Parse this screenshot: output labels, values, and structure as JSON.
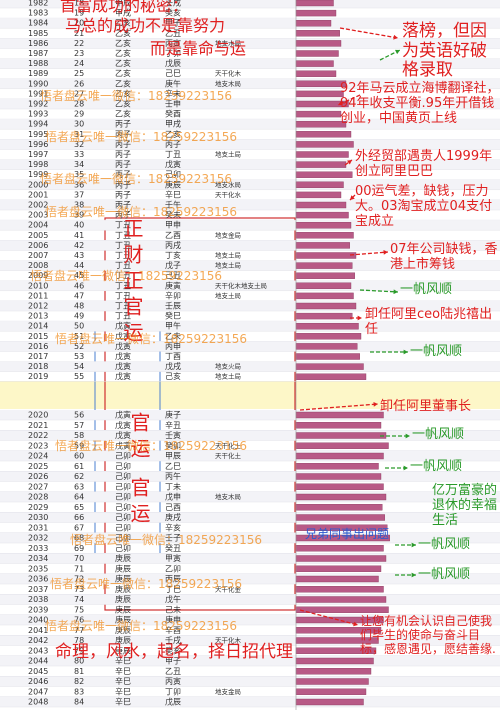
{
  "years": [
    1982,
    1983,
    1984,
    1985,
    1986,
    1987,
    1988,
    1989,
    1990,
    1991,
    1992,
    1993,
    1994,
    1995,
    1996,
    1997,
    1998,
    1999,
    2000,
    2001,
    2002,
    2003,
    2004,
    2005,
    2006,
    2007,
    2008,
    2009,
    2010,
    2011,
    2012,
    2013,
    2014,
    2015,
    2016,
    2017,
    2018,
    2019,
    2020,
    2021,
    2022,
    2023,
    2024,
    2025,
    2026,
    2027,
    2028,
    2029,
    2030,
    2031,
    2032,
    2033,
    2034,
    2035,
    2036,
    2037,
    2038,
    2039,
    2040,
    2041,
    2042,
    2043,
    2044,
    2045,
    2046,
    2047,
    2048
  ],
  "ages": [
    18,
    19,
    20,
    21,
    22,
    23,
    24,
    25,
    26,
    27,
    28,
    29,
    30,
    31,
    32,
    33,
    34,
    35,
    36,
    37,
    38,
    39,
    40,
    41,
    42,
    43,
    44,
    45,
    46,
    47,
    48,
    49,
    50,
    51,
    52,
    53,
    54,
    55,
    56,
    57,
    58,
    59,
    60,
    61,
    62,
    63,
    64,
    65,
    66,
    67,
    68,
    69,
    70,
    71,
    72,
    73,
    74,
    75,
    76,
    77,
    78,
    79,
    80,
    81,
    82,
    83,
    84
  ],
  "dayun": [
    "甲戌",
    "甲戌",
    "乙亥",
    "乙亥",
    "乙亥",
    "乙亥",
    "乙亥",
    "乙亥",
    "乙亥",
    "乙亥",
    "乙亥",
    "乙亥",
    "丙子",
    "丙子",
    "丙子",
    "丙子",
    "丙子",
    "丙子",
    "丙子",
    "丙子",
    "丙子",
    "丙子",
    "丁丑",
    "丁丑",
    "丁丑",
    "丁丑",
    "丁丑",
    "丁丑",
    "丁丑",
    "丁丑",
    "丁丑",
    "丁丑",
    "戊寅",
    "戊寅",
    "戊寅",
    "戊寅",
    "戊寅",
    "戊寅",
    "戊寅",
    "戊寅",
    "戊寅",
    "戊寅",
    "己卯",
    "己卯",
    "己卯",
    "己卯",
    "己卯",
    "己卯",
    "己卯",
    "己卯",
    "己卯",
    "己卯",
    "庚辰",
    "庚辰",
    "庚辰",
    "庚辰",
    "庚辰",
    "庚辰",
    "庚辰",
    "庚辰",
    "庚辰",
    "庚辰",
    "辛巳",
    "辛巳",
    "辛巳",
    "辛巳",
    "辛巳"
  ],
  "liunian": [
    "壬戌",
    "癸亥",
    "甲子",
    "乙丑",
    "丙寅",
    "丁卯",
    "戊辰",
    "己巳",
    "庚午",
    "辛未",
    "壬申",
    "癸酉",
    "甲戌",
    "乙亥",
    "丙子",
    "丁丑",
    "戊寅",
    "己卯",
    "庚辰",
    "辛巳",
    "壬午",
    "癸未",
    "甲申",
    "乙酉",
    "丙戌",
    "丁亥",
    "戊子",
    "己丑",
    "庚寅",
    "辛卯",
    "壬辰",
    "癸巳",
    "甲午",
    "乙未",
    "丙申",
    "丁酉",
    "戊戌",
    "己亥",
    "庚子",
    "辛丑",
    "壬寅",
    "癸卯",
    "甲辰",
    "乙巳",
    "丙午",
    "丁未",
    "戊申",
    "己酉",
    "庚戌",
    "辛亥",
    "壬子",
    "癸丑",
    "甲寅",
    "乙卯",
    "丙辰",
    "丁巳",
    "戊午",
    "己未",
    "庚申",
    "辛酉",
    "壬戌",
    "癸亥",
    "甲子",
    "乙丑",
    "丙寅",
    "丁卯",
    "戊辰"
  ],
  "notes": [
    null,
    null,
    null,
    null,
    "地支水局",
    null,
    null,
    "天干化木",
    "地支木局",
    null,
    null,
    null,
    null,
    null,
    null,
    "地支土局",
    null,
    null,
    "地支水局",
    "天干化水",
    null,
    null,
    null,
    "地支金局",
    null,
    "地支土局",
    "地支土局",
    null,
    "天干化木地支土局",
    "地支土局",
    null,
    null,
    null,
    null,
    null,
    null,
    "地支火局",
    "地支土局",
    null,
    null,
    null,
    "天干化土",
    "天干化土",
    null,
    null,
    null,
    "地支木局",
    null,
    null,
    null,
    null,
    null,
    null,
    null,
    null,
    "天干化金",
    null,
    null,
    null,
    null,
    "天干化木",
    null,
    null,
    null,
    null,
    "地支金局",
    null
  ],
  "scores": [
    30,
    32,
    28,
    35,
    36,
    34,
    30,
    32,
    40,
    38,
    42,
    36,
    40,
    44,
    46,
    42,
    40,
    45,
    38,
    36,
    40,
    42,
    44,
    46,
    43,
    48,
    45,
    47,
    44,
    46,
    48,
    45,
    50,
    52,
    49,
    51,
    54,
    56,
    70,
    68,
    72,
    74,
    70,
    66,
    68,
    70,
    72,
    69,
    71,
    73,
    75,
    70,
    72,
    68,
    66,
    70,
    72,
    74,
    70,
    68,
    66,
    64,
    62,
    60,
    58,
    56,
    54
  ],
  "watermark": "悟者盘云唯一微信：18259223156",
  "vertical": [
    "正财正官运",
    "官运",
    "官运"
  ],
  "annotations": [
    {
      "text": "首富成功的秘密：",
      "color": "#e02020"
    },
    {
      "text": "马总的成功不是靠努力",
      "color": "#e02020"
    },
    {
      "text": "而是靠命与运",
      "color": "#e02020"
    },
    {
      "text": "落榜，但因为英语好破格录取",
      "color": "#e02020"
    },
    {
      "text": "92年马云成立海博翻译社，94年收支平衡.95年开借钱创业，中国黄页上线",
      "color": "#e02020"
    },
    {
      "text": "外经贸部遇贵人1999年创立阿里巴巴",
      "color": "#e02020"
    },
    {
      "text": "00运气差，缺钱，压力大。03淘宝成立04支付宝成立",
      "color": "#e02020"
    },
    {
      "text": "07年公司缺钱，香港上市筹钱",
      "color": "#e02020"
    },
    {
      "text": "一帆风顺",
      "color": "#2a9a2a"
    },
    {
      "text": "卸任阿里ceo陆兆禧出任",
      "color": "#e02020"
    },
    {
      "text": "一帆风顺",
      "color": "#2a9a2a"
    },
    {
      "text": "卸任阿里董事长",
      "color": "#e02020"
    },
    {
      "text": "一帆风顺",
      "color": "#2a9a2a"
    },
    {
      "text": "一帆风顺",
      "color": "#2a9a2a"
    },
    {
      "text": "亿万富豪的退休的幸福生活",
      "color": "#2a9a2a"
    },
    {
      "text": "兄弟同事出问题",
      "color": "#2a5bd0"
    },
    {
      "text": "一帆风顺",
      "color": "#2a9a2a"
    },
    {
      "text": "一帆风顺",
      "color": "#2a9a2a"
    },
    {
      "text": "让您有机会认识自己使我们毕生的使命与奋斗目标，感恩遇见，愿结善缘.",
      "color": "#e02020"
    },
    {
      "text": "命理，风水，起名，择日招代理",
      "color": "#e02020"
    }
  ]
}
